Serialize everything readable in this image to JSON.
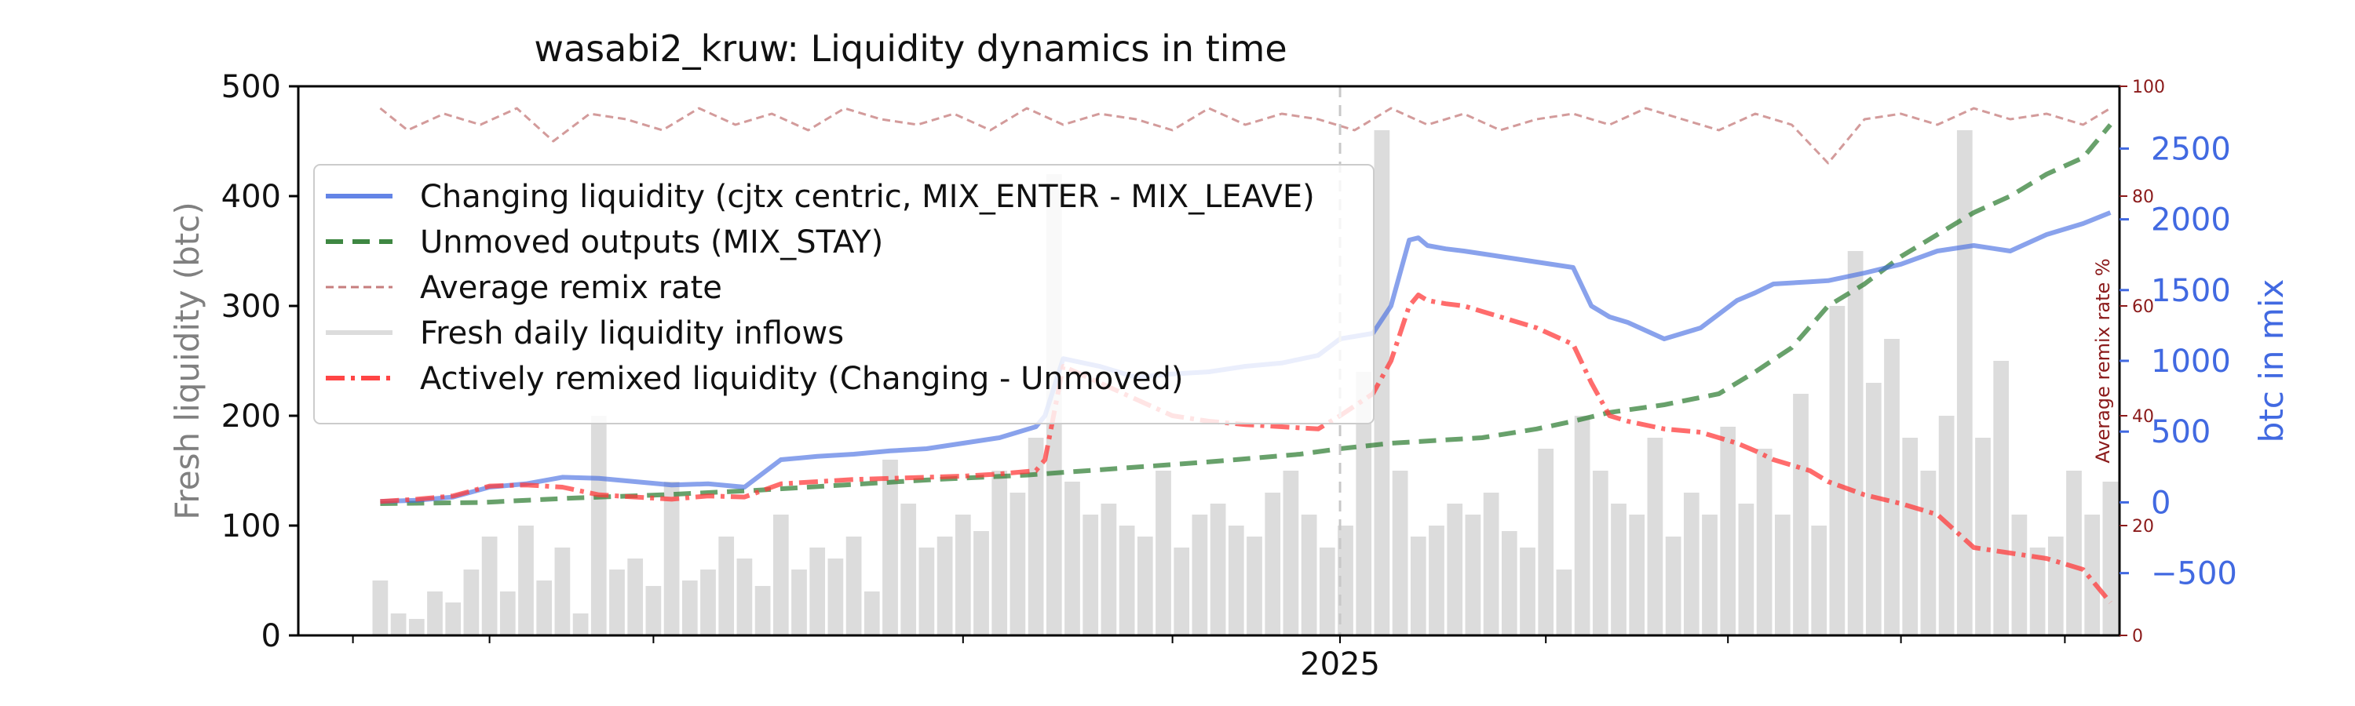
{
  "chart_data": {
    "type": "line",
    "title": "wasabi2_kruw: Liquidity dynamics in time",
    "x_tick_labels": [
      "2025"
    ],
    "left_axis": {
      "label": "Fresh liquidity (btc)",
      "range": [
        0,
        500
      ],
      "ticks": [
        0,
        100,
        200,
        300,
        400,
        500
      ]
    },
    "remix_axis": {
      "label": "Average remix rate %",
      "range": [
        0,
        100
      ],
      "ticks": [
        0,
        20,
        40,
        60,
        80,
        100
      ]
    },
    "right_axis": {
      "label": "btc in mix",
      "range": [
        -940,
        2940
      ],
      "ticks": [
        -500,
        0,
        500,
        1000,
        1500,
        2000,
        2500
      ]
    },
    "x_range": [
      0,
      100
    ],
    "marker_x": 57.2,
    "legend_position": "upper-left",
    "colors": {
      "changing": "#4169e1",
      "unmoved": "#2e7d32",
      "remix": "#c07070",
      "fresh": "#dcdcdc",
      "remixed": "#ff3b3b",
      "right_axis": "#4169e1",
      "remix_axis": "#8b1a1a",
      "left_label": "#808080"
    },
    "series": [
      {
        "key": "changing",
        "name": "Changing liquidity (cjtx centric, MIX_ENTER - MIX_LEAVE)",
        "axis": "left",
        "x": [
          4.5,
          6.5,
          8.5,
          10.5,
          12.5,
          14.5,
          16.5,
          18.5,
          20.5,
          22.5,
          24.5,
          26.5,
          28.5,
          30.5,
          32.5,
          34.5,
          36.5,
          38.5,
          40.5,
          41,
          42,
          44,
          46,
          48,
          50,
          52,
          54,
          56,
          57.2,
          59,
          60,
          61,
          61.5,
          62,
          63,
          64,
          66,
          68,
          70,
          71,
          72,
          73,
          75,
          77,
          79,
          80,
          81,
          83,
          84,
          86,
          88,
          90,
          92,
          94,
          96,
          98,
          99.5
        ],
        "values": [
          122,
          123,
          126,
          135,
          138,
          144,
          143,
          140,
          137,
          138,
          135,
          160,
          163,
          165,
          168,
          170,
          175,
          180,
          190,
          200,
          252,
          245,
          235,
          238,
          240,
          245,
          248,
          255,
          270,
          275,
          300,
          360,
          362,
          355,
          352,
          350,
          345,
          340,
          335,
          300,
          290,
          285,
          270,
          280,
          305,
          312,
          320,
          322,
          323,
          330,
          338,
          350,
          355,
          350,
          365,
          375,
          385
        ]
      },
      {
        "key": "unmoved",
        "name": "Unmoved outputs (MIX_STAY)",
        "axis": "left",
        "x": [
          4.5,
          10,
          15,
          20,
          25,
          30,
          35,
          40,
          45,
          50,
          55,
          57.2,
          60,
          65,
          68,
          70,
          72,
          75,
          78,
          80,
          82,
          84,
          86,
          88,
          90,
          92,
          94,
          96,
          98,
          99.5
        ],
        "values": [
          120,
          121,
          125,
          128,
          132,
          137,
          142,
          146,
          152,
          158,
          165,
          170,
          175,
          180,
          188,
          195,
          203,
          210,
          220,
          240,
          262,
          300,
          320,
          345,
          365,
          385,
          400,
          420,
          435,
          465
        ]
      },
      {
        "key": "remix",
        "name": "Average remix rate",
        "axis": "remix",
        "x": [
          4.5,
          6,
          8,
          10,
          12,
          14,
          16,
          18,
          20,
          22,
          24,
          26,
          28,
          30,
          32,
          34,
          36,
          38,
          40,
          42,
          44,
          46,
          48,
          50,
          52,
          54,
          56,
          58,
          60,
          62,
          64,
          66,
          68,
          70,
          72,
          74,
          76,
          78,
          80,
          82,
          84,
          86,
          88,
          90,
          92,
          94,
          96,
          98,
          99.5
        ],
        "values": [
          96,
          92,
          95,
          93,
          96,
          90,
          95,
          94,
          92,
          96,
          93,
          95,
          92,
          96,
          94,
          93,
          95,
          92,
          96,
          93,
          95,
          94,
          92,
          96,
          93,
          95,
          94,
          92,
          96,
          93,
          95,
          92,
          94,
          95,
          93,
          96,
          94,
          92,
          95,
          93,
          86,
          94,
          95,
          93,
          96,
          94,
          95,
          93,
          96
        ]
      },
      {
        "key": "remixed",
        "name": "Actively remixed liquidity (Changing - Unmoved)",
        "axis": "left",
        "x": [
          4.5,
          6.5,
          8.5,
          10.5,
          12.5,
          14.5,
          16.5,
          18.5,
          20.5,
          22.5,
          24.5,
          26.5,
          28.5,
          30.5,
          32.5,
          34.5,
          36.5,
          38.5,
          40.5,
          41,
          42,
          44,
          46,
          48,
          50,
          52,
          54,
          56,
          57.2,
          59,
          60,
          61,
          61.5,
          62,
          63,
          64,
          66,
          68,
          70,
          71,
          72,
          73,
          75,
          77,
          79,
          80,
          81,
          83,
          84,
          86,
          88,
          90,
          92,
          94,
          96,
          98,
          99.5
        ],
        "values": [
          122,
          124,
          127,
          136,
          137,
          135,
          128,
          126,
          124,
          127,
          126,
          138,
          140,
          142,
          143,
          144,
          145,
          147,
          150,
          160,
          245,
          230,
          215,
          200,
          195,
          192,
          190,
          188,
          200,
          220,
          250,
          300,
          310,
          305,
          302,
          300,
          290,
          280,
          265,
          230,
          200,
          195,
          188,
          185,
          175,
          168,
          160,
          150,
          140,
          128,
          120,
          110,
          80,
          75,
          70,
          60,
          30
        ]
      },
      {
        "key": "fresh",
        "name": "Fresh daily liquidity inflows",
        "axis": "left",
        "type": "bar",
        "x": [
          4.5,
          5.5,
          6.5,
          7.5,
          8.5,
          9.5,
          10.5,
          11.5,
          12.5,
          13.5,
          14.5,
          15.5,
          16.5,
          17.5,
          18.5,
          19.5,
          20.5,
          21.5,
          22.5,
          23.5,
          24.5,
          25.5,
          26.5,
          27.5,
          28.5,
          29.5,
          30.5,
          31.5,
          32.5,
          33.5,
          34.5,
          35.5,
          36.5,
          37.5,
          38.5,
          39.5,
          40.5,
          41.5,
          42.5,
          43.5,
          44.5,
          45.5,
          46.5,
          47.5,
          48.5,
          49.5,
          50.5,
          51.5,
          52.5,
          53.5,
          54.5,
          55.5,
          56.5,
          57.5,
          58.5,
          59.5,
          60.5,
          61.5,
          62.5,
          63.5,
          64.5,
          65.5,
          66.5,
          67.5,
          68.5,
          69.5,
          70.5,
          71.5,
          72.5,
          73.5,
          74.5,
          75.5,
          76.5,
          77.5,
          78.5,
          79.5,
          80.5,
          81.5,
          82.5,
          83.5,
          84.5,
          85.5,
          86.5,
          87.5,
          88.5,
          89.5,
          90.5,
          91.5,
          92.5,
          93.5,
          94.5,
          95.5,
          96.5,
          97.5,
          98.5,
          99.5
        ],
        "values": [
          50,
          20,
          15,
          40,
          30,
          60,
          90,
          40,
          100,
          50,
          80,
          20,
          200,
          60,
          70,
          45,
          140,
          50,
          60,
          90,
          70,
          45,
          110,
          60,
          80,
          70,
          90,
          40,
          160,
          120,
          80,
          90,
          110,
          95,
          150,
          130,
          180,
          420,
          140,
          110,
          120,
          100,
          90,
          150,
          80,
          110,
          120,
          100,
          90,
          130,
          150,
          110,
          80,
          100,
          240,
          460,
          150,
          90,
          100,
          120,
          110,
          130,
          95,
          80,
          170,
          60,
          200,
          150,
          120,
          110,
          180,
          90,
          130,
          110,
          190,
          120,
          170,
          110,
          220,
          100,
          300,
          350,
          230,
          270,
          180,
          150,
          200,
          460,
          180,
          250,
          110,
          80,
          90,
          150,
          110,
          140
        ]
      }
    ]
  }
}
